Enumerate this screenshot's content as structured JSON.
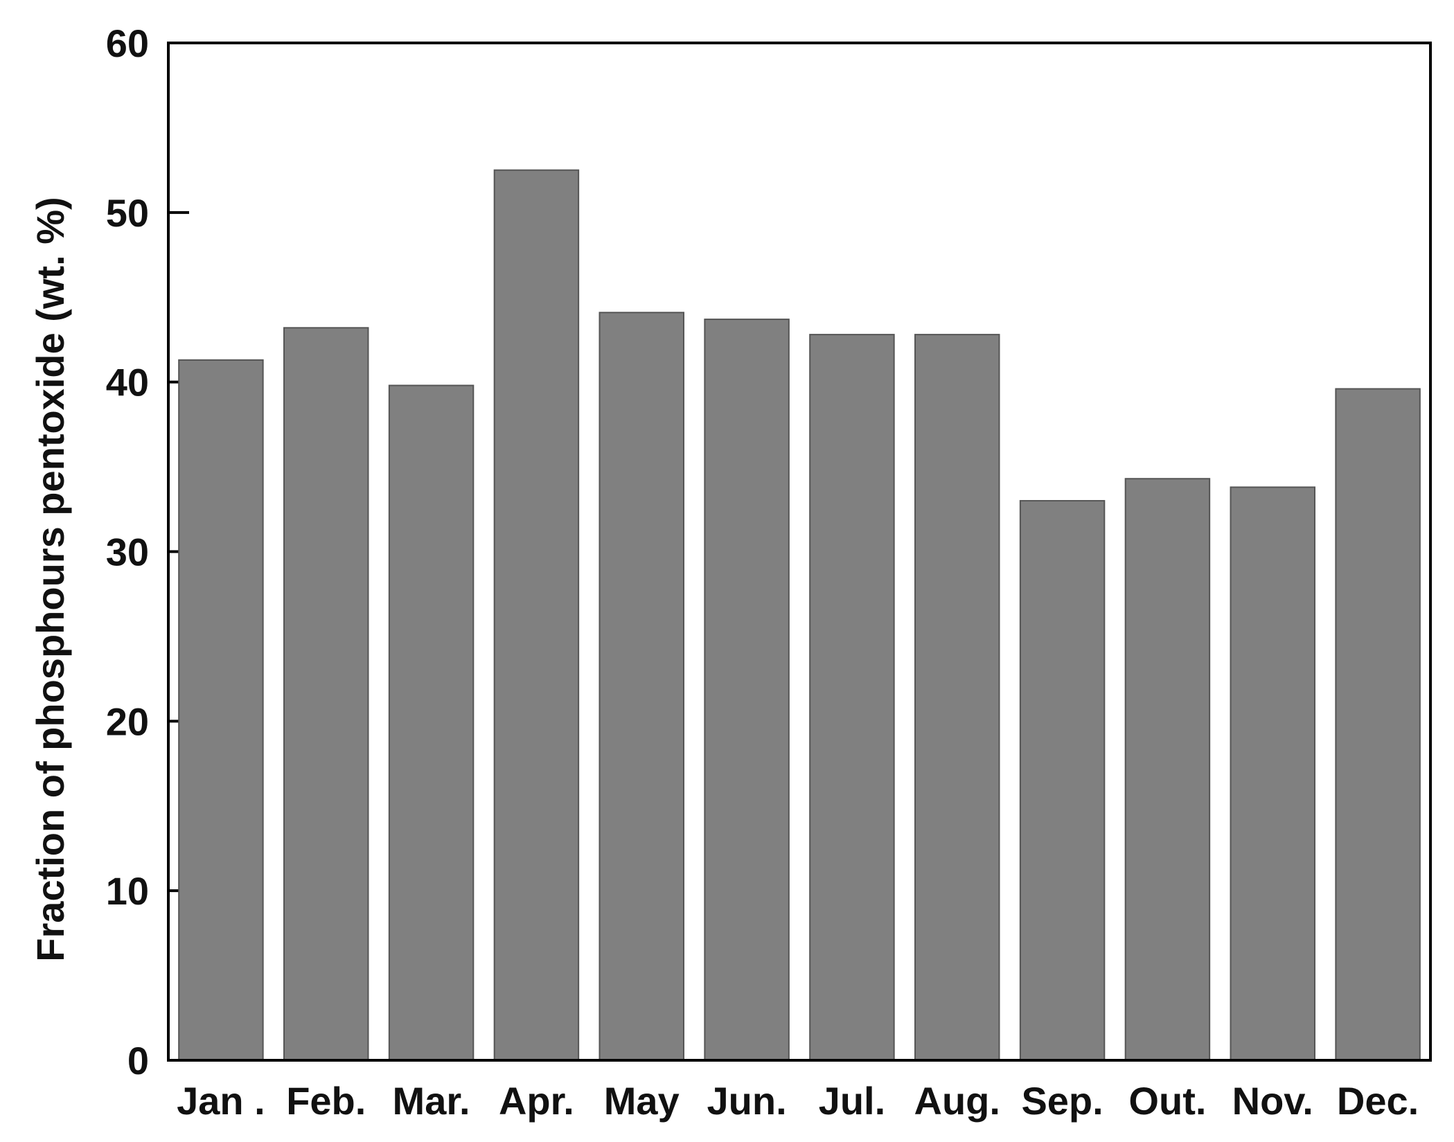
{
  "chart_data": {
    "type": "bar",
    "title": "",
    "xlabel": "",
    "ylabel": "Fraction of phosphours pentoxide (wt. %)",
    "categories": [
      "Jan .",
      "Feb.",
      "Mar.",
      "Apr.",
      "May",
      "Jun.",
      "Jul.",
      "Aug.",
      "Sep.",
      "Out.",
      "Nov.",
      "Dec."
    ],
    "values": [
      41.3,
      43.2,
      39.8,
      52.5,
      44.1,
      43.7,
      42.8,
      42.8,
      33.0,
      34.3,
      33.8,
      39.6
    ],
    "ylim": [
      0,
      60
    ],
    "yticks": [
      "0",
      "10",
      "20",
      "30",
      "40",
      "50",
      "60"
    ],
    "grid": false,
    "legend": "none",
    "bar_color": "#808080",
    "bar_edge_color": "#555555",
    "axis_color": "#000000"
  }
}
